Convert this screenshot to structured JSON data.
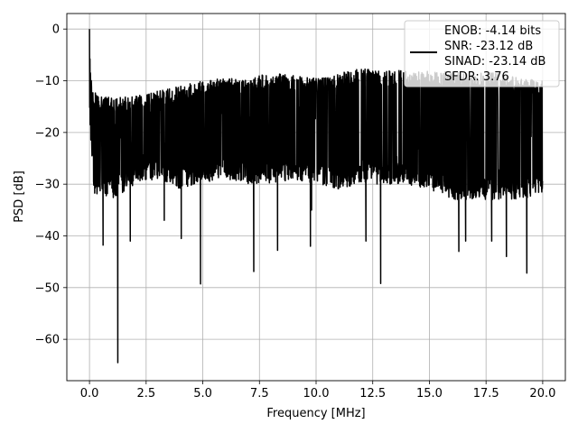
{
  "chart_data": {
    "type": "line",
    "title": "",
    "xlabel": "Frequency [MHz]",
    "ylabel": "PSD [dB]",
    "xlim": [
      -1.0,
      21.0
    ],
    "ylim": [
      -68,
      3
    ],
    "xticks": [
      0.0,
      2.5,
      5.0,
      7.5,
      10.0,
      12.5,
      15.0,
      17.5,
      20.0
    ],
    "xtick_labels": [
      "0.0",
      "2.5",
      "5.0",
      "7.5",
      "10.0",
      "12.5",
      "15.0",
      "17.5",
      "20.0"
    ],
    "yticks": [
      0,
      -10,
      -20,
      -30,
      -40,
      -50,
      -60
    ],
    "ytick_labels": [
      "0",
      "−10",
      "−20",
      "−30",
      "−40",
      "−50",
      "−60"
    ],
    "grid": true,
    "legend_position": "top-right",
    "legend_lines": [
      "ENOB: -4.14 bits",
      "SNR: -23.12 dB",
      "SINAD: -23.14 dB",
      "SFDR: 3.76"
    ],
    "series": [
      {
        "color": "#000000",
        "x_range": [
          0,
          20
        ],
        "upper_envelope": [
          [
            0,
            0
          ],
          [
            0.05,
            -8
          ],
          [
            0.15,
            -12
          ],
          [
            0.5,
            -13
          ],
          [
            1.0,
            -13
          ],
          [
            2.0,
            -13
          ],
          [
            3.0,
            -12
          ],
          [
            4.0,
            -11
          ],
          [
            5.0,
            -10
          ],
          [
            6.0,
            -9.5
          ],
          [
            7.0,
            -9.5
          ],
          [
            8.0,
            -8.5
          ],
          [
            10.0,
            -9.5
          ],
          [
            12.0,
            -7.5
          ],
          [
            13.0,
            -8
          ],
          [
            15.0,
            -8
          ],
          [
            17.0,
            -8.5
          ],
          [
            18.0,
            -8.5
          ],
          [
            19.0,
            -9.5
          ],
          [
            20.0,
            -10
          ]
        ],
        "lower_envelope": [
          [
            0,
            -17
          ],
          [
            0.2,
            -33
          ],
          [
            0.5,
            -32
          ],
          [
            1.0,
            -33
          ],
          [
            2.0,
            -30
          ],
          [
            3.0,
            -29
          ],
          [
            4.0,
            -31
          ],
          [
            5.0,
            -30
          ],
          [
            6.0,
            -29
          ],
          [
            7.0,
            -30
          ],
          [
            8.0,
            -30
          ],
          [
            9.0,
            -29
          ],
          [
            10.0,
            -30
          ],
          [
            11.0,
            -31
          ],
          [
            12.0,
            -30
          ],
          [
            13.0,
            -30
          ],
          [
            14.0,
            -30
          ],
          [
            15.0,
            -31
          ],
          [
            16.0,
            -33
          ],
          [
            17.0,
            -33
          ],
          [
            18.0,
            -33
          ],
          [
            19.0,
            -33
          ],
          [
            20.0,
            -32
          ]
        ],
        "notches": [
          [
            1.25,
            -64.5
          ],
          [
            4.9,
            -49.3
          ],
          [
            12.85,
            -49.2
          ],
          [
            7.25,
            -46.9
          ],
          [
            19.3,
            -47.2
          ],
          [
            8.3,
            -42.8
          ],
          [
            16.3,
            -43
          ],
          [
            18.4,
            -44
          ],
          [
            0.6,
            -41.8
          ],
          [
            1.8,
            -41
          ],
          [
            4.05,
            -40.5
          ],
          [
            9.75,
            -42
          ],
          [
            12.2,
            -41
          ],
          [
            16.6,
            -41
          ],
          [
            17.75,
            -41
          ],
          [
            3.3,
            -37
          ],
          [
            9.8,
            -35
          ]
        ]
      }
    ]
  }
}
